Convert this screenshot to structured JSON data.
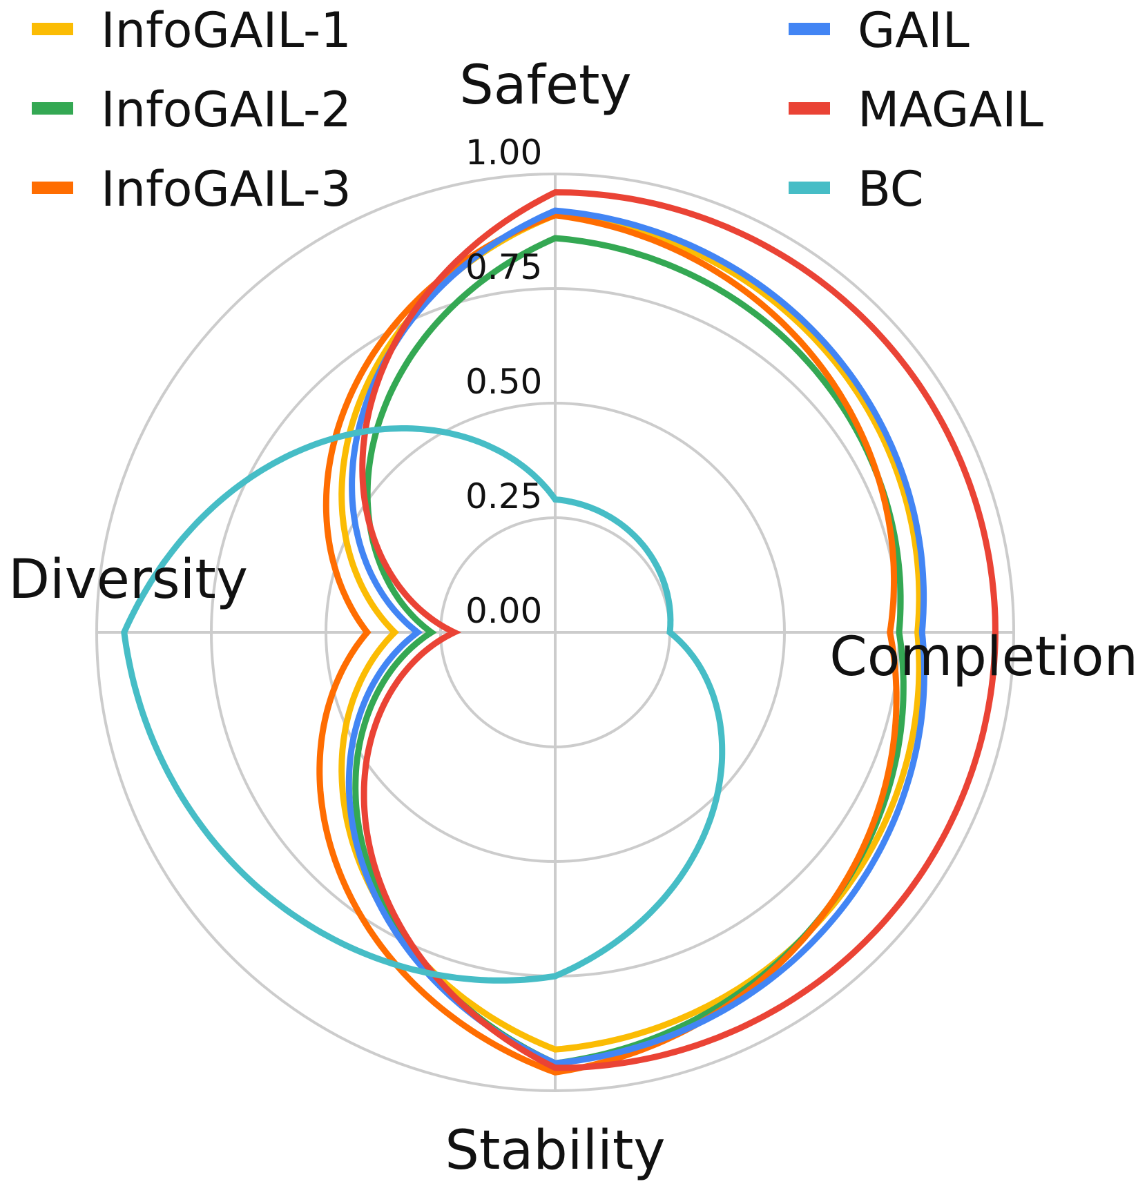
{
  "chart_data": {
    "type": "radar",
    "axes": [
      "Safety",
      "Completion",
      "Stability",
      "Diversity"
    ],
    "rlim": [
      0,
      1.0
    ],
    "ticks": [
      "0.00",
      "0.25",
      "0.50",
      "0.75",
      "1.00"
    ],
    "tick_values": [
      0.0,
      0.25,
      0.5,
      0.75,
      1.0
    ],
    "grid": true,
    "legend_position": "top",
    "series": [
      {
        "name": "InfoGAIL-1",
        "color": "#FBBC04",
        "values": [
          0.91,
          0.79,
          0.91,
          0.35
        ]
      },
      {
        "name": "InfoGAIL-2",
        "color": "#34A853",
        "values": [
          0.86,
          0.75,
          0.94,
          0.27
        ]
      },
      {
        "name": "InfoGAIL-3",
        "color": "#FF6D01",
        "values": [
          0.91,
          0.73,
          0.96,
          0.41
        ]
      },
      {
        "name": "GAIL",
        "color": "#4285F4",
        "values": [
          0.92,
          0.8,
          0.94,
          0.3
        ]
      },
      {
        "name": "MAGAIL",
        "color": "#EA4335",
        "values": [
          0.96,
          0.96,
          0.95,
          0.22
        ]
      },
      {
        "name": "BC",
        "color": "#46BDC6",
        "values": [
          0.29,
          0.25,
          0.75,
          0.94
        ]
      }
    ]
  }
}
